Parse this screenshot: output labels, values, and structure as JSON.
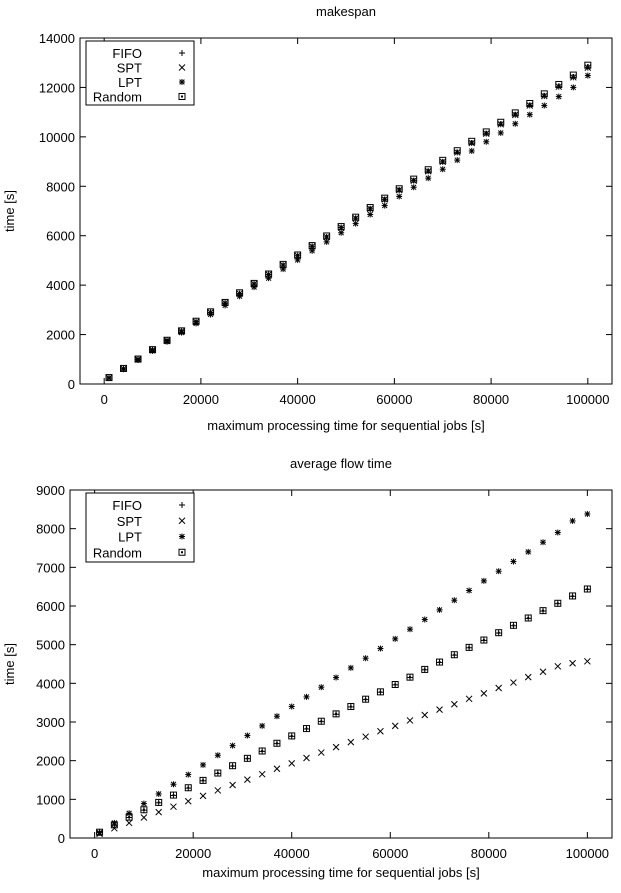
{
  "chart_data": [
    {
      "type": "scatter",
      "title": "makespan",
      "xlabel": "maximum processing time for sequential jobs [s]",
      "ylabel": "time [s]",
      "xlim": [
        -5000,
        105000
      ],
      "ylim": [
        0,
        14000
      ],
      "x_ticks": [
        0,
        20000,
        40000,
        60000,
        80000,
        100000
      ],
      "y_ticks": [
        0,
        2000,
        4000,
        6000,
        8000,
        10000,
        12000,
        14000
      ],
      "x_tick_labels": [
        "0",
        "20000",
        "40000",
        "60000",
        "80000",
        "100000"
      ],
      "y_tick_labels": [
        "0",
        "2000",
        "4000",
        "6000",
        "8000",
        "10000",
        "12000",
        "14000"
      ],
      "legend_position": "top-left",
      "x": [
        1000,
        4000,
        7000,
        10000,
        13000,
        16000,
        19000,
        22000,
        25000,
        28000,
        31000,
        34000,
        37000,
        40000,
        43000,
        46000,
        49000,
        52000,
        55000,
        58000,
        61000,
        64000,
        67000,
        70000,
        73000,
        76000,
        79000,
        82000,
        85000,
        88000,
        91000,
        94000,
        97000,
        100000
      ],
      "series": [
        {
          "name": "FIFO",
          "marker": "plus",
          "values": [
            250,
            620,
            1000,
            1380,
            1760,
            2140,
            2520,
            2900,
            3280,
            3660,
            4050,
            4430,
            4810,
            5190,
            5570,
            5950,
            6330,
            6710,
            7090,
            7470,
            7850,
            8230,
            8610,
            8990,
            9370,
            9750,
            10130,
            10510,
            10890,
            11270,
            11650,
            12030,
            12410,
            12800
          ]
        },
        {
          "name": "SPT",
          "marker": "cross",
          "values": [
            250,
            620,
            1000,
            1380,
            1760,
            2140,
            2520,
            2900,
            3280,
            3660,
            4050,
            4430,
            4810,
            5190,
            5570,
            5950,
            6330,
            6710,
            7090,
            7470,
            7850,
            8230,
            8610,
            8990,
            9370,
            9750,
            10130,
            10510,
            10890,
            11270,
            11650,
            12030,
            12410,
            12800
          ]
        },
        {
          "name": "LPT",
          "marker": "star",
          "values": [
            240,
            600,
            970,
            1340,
            1710,
            2080,
            2450,
            2810,
            3180,
            3550,
            3920,
            4280,
            4650,
            5020,
            5390,
            5750,
            6120,
            6490,
            6860,
            7220,
            7590,
            7960,
            8330,
            8690,
            9060,
            9430,
            9800,
            10160,
            10530,
            10900,
            11270,
            11630,
            12000,
            12480
          ]
        },
        {
          "name": "Random",
          "marker": "boxed-square",
          "values": [
            260,
            630,
            1010,
            1390,
            1770,
            2150,
            2540,
            2920,
            3300,
            3690,
            4070,
            4450,
            4840,
            5220,
            5600,
            5990,
            6370,
            6750,
            7140,
            7520,
            7900,
            8290,
            8670,
            9050,
            9440,
            9820,
            10200,
            10590,
            10970,
            11350,
            11740,
            12120,
            12500,
            12900
          ]
        }
      ]
    },
    {
      "type": "scatter",
      "title": "average flow time",
      "xlabel": "maximum processing time for sequential jobs [s]",
      "ylabel": "time [s]",
      "xlim": [
        -5000,
        105000
      ],
      "ylim": [
        0,
        9000
      ],
      "x_ticks": [
        0,
        20000,
        40000,
        60000,
        80000,
        100000
      ],
      "y_ticks": [
        0,
        1000,
        2000,
        3000,
        4000,
        5000,
        6000,
        7000,
        8000,
        9000
      ],
      "x_tick_labels": [
        "0",
        "20000",
        "40000",
        "60000",
        "80000",
        "100000"
      ],
      "y_tick_labels": [
        "0",
        "1000",
        "2000",
        "3000",
        "4000",
        "5000",
        "6000",
        "7000",
        "8000",
        "9000"
      ],
      "legend_position": "top-left",
      "x": [
        1000,
        4000,
        7000,
        10000,
        13000,
        16000,
        19000,
        22000,
        25000,
        28000,
        31000,
        34000,
        37000,
        40000,
        43000,
        46000,
        49000,
        52000,
        55000,
        58000,
        61000,
        64000,
        67000,
        70000,
        73000,
        76000,
        79000,
        82000,
        85000,
        88000,
        91000,
        94000,
        97000,
        100000
      ],
      "series": [
        {
          "name": "FIFO",
          "marker": "plus",
          "values": [
            140,
            330,
            530,
            720,
            910,
            1100,
            1290,
            1480,
            1670,
            1860,
            2050,
            2240,
            2440,
            2630,
            2820,
            3010,
            3200,
            3390,
            3580,
            3770,
            3960,
            4150,
            4350,
            4540,
            4730,
            4920,
            5110,
            5300,
            5490,
            5680,
            5870,
            6060,
            6250,
            6430
          ]
        },
        {
          "name": "SPT",
          "marker": "cross",
          "values": [
            110,
            250,
            390,
            530,
            670,
            810,
            950,
            1090,
            1230,
            1370,
            1510,
            1650,
            1790,
            1930,
            2070,
            2210,
            2350,
            2480,
            2620,
            2760,
            2900,
            3040,
            3180,
            3320,
            3460,
            3600,
            3740,
            3880,
            4020,
            4160,
            4300,
            4440,
            4520,
            4570
          ]
        },
        {
          "name": "LPT",
          "marker": "star",
          "values": [
            140,
            390,
            640,
            890,
            1140,
            1390,
            1640,
            1890,
            2140,
            2390,
            2650,
            2900,
            3150,
            3400,
            3650,
            3900,
            4150,
            4400,
            4650,
            4900,
            5150,
            5400,
            5650,
            5900,
            6150,
            6400,
            6650,
            6900,
            7150,
            7400,
            7650,
            7900,
            8200,
            8380
          ]
        },
        {
          "name": "Random",
          "marker": "boxed-square",
          "values": [
            150,
            340,
            540,
            730,
            920,
            1110,
            1300,
            1490,
            1680,
            1870,
            2060,
            2250,
            2450,
            2640,
            2830,
            3020,
            3210,
            3400,
            3590,
            3780,
            3970,
            4160,
            4360,
            4550,
            4740,
            4930,
            5120,
            5310,
            5500,
            5690,
            5880,
            6070,
            6260,
            6440
          ]
        }
      ]
    }
  ]
}
